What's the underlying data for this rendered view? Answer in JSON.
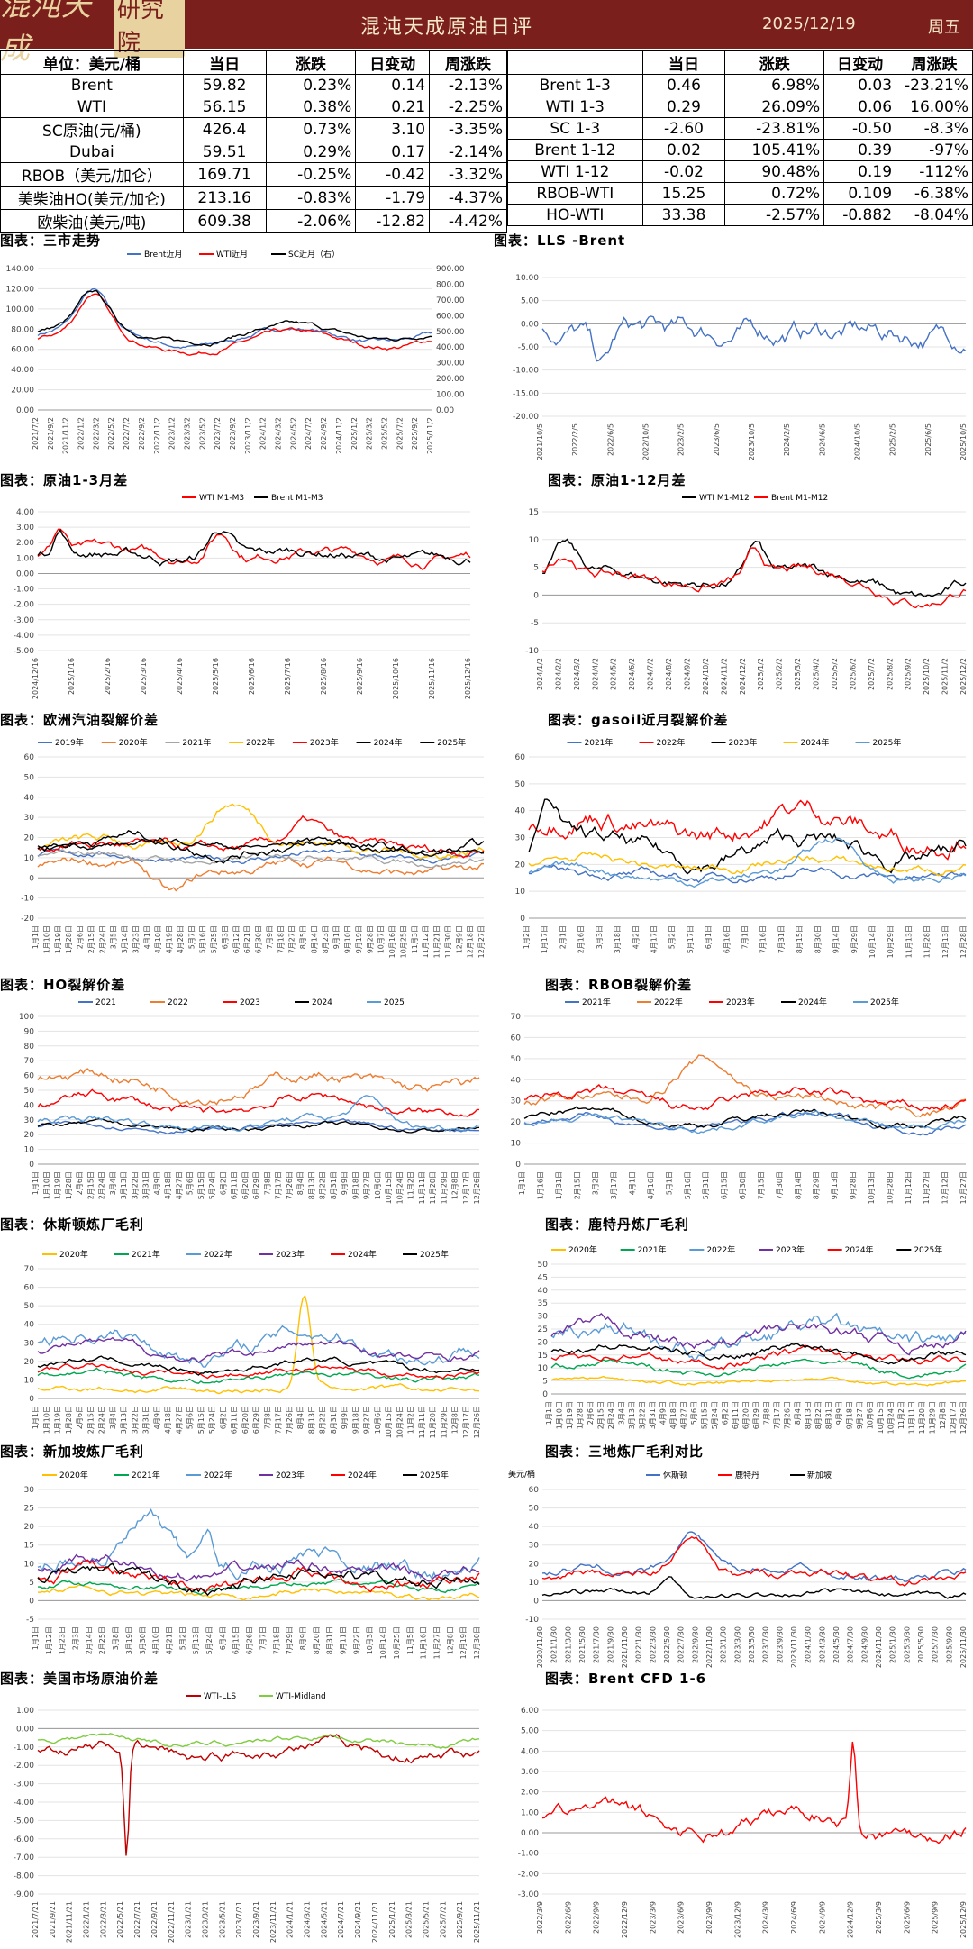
{
  "header": {
    "logo_text": "混沌天成",
    "logo_seal": "研究院",
    "title": "混沌天成原油日评",
    "date": "2025/12/19",
    "weekday": "周五"
  },
  "left_table": {
    "headers": [
      "单位：美元/桶",
      "当日",
      "涨跌",
      "日变动",
      "周涨跌"
    ],
    "rows": [
      [
        "Brent",
        "59.82",
        "0.23%",
        "0.14",
        "-2.13%"
      ],
      [
        "WTI",
        "56.15",
        "0.38%",
        "0.21",
        "-2.25%"
      ],
      [
        "SC原油(元/桶)",
        "426.4",
        "0.73%",
        "3.10",
        "-3.35%"
      ],
      [
        "Dubai",
        "59.51",
        "0.29%",
        "0.17",
        "-2.14%"
      ],
      [
        "RBOB（美元/加仑）",
        "169.71",
        "-0.25%",
        "-0.42",
        "-3.32%"
      ],
      [
        "美柴油HO(美元/加仑)",
        "213.16",
        "-0.83%",
        "-1.79",
        "-4.37%"
      ],
      [
        "欧柴油(美元/吨)",
        "609.38",
        "-2.06%",
        "-12.82",
        "-4.42%"
      ]
    ]
  },
  "right_table": {
    "headers": [
      "",
      "当日",
      "涨跌",
      "日变动",
      "周涨跌"
    ],
    "rows": [
      [
        "Brent 1-3",
        "0.46",
        "6.98%",
        "0.03",
        "-23.21%"
      ],
      [
        "WTI 1-3",
        "0.29",
        "26.09%",
        "0.06",
        "16.00%"
      ],
      [
        "SC 1-3",
        "-2.60",
        "-23.81%",
        "-0.50",
        "-8.3%"
      ],
      [
        "Brent 1-12",
        "0.02",
        "105.41%",
        "0.39",
        "-97%"
      ],
      [
        "WTI 1-12",
        "-0.02",
        "90.48%",
        "0.19",
        "-112%"
      ],
      [
        "RBOB-WTI",
        "15.25",
        "0.72%",
        "0.109",
        "-6.38%"
      ],
      [
        "HO-WTI",
        "33.38",
        "-2.57%",
        "-0.882",
        "-8.04%"
      ]
    ]
  },
  "colors": {
    "header_bg": "#7b1f1d",
    "y2019": "#4472c4",
    "y2020": "#ed7d31",
    "y2021": "#a5a5a5",
    "y2022": "#ffc000",
    "y2023": "#ff0000",
    "y2024": "#000000",
    "y2025": "#5b9bd5"
  },
  "chart_data": [
    {
      "id": "three-markets",
      "type": "line",
      "title": "图表：三市走势",
      "series": [
        {
          "name": "Brent近月"
        },
        {
          "name": "WTI近月"
        },
        {
          "name": "SC近月（右）"
        }
      ],
      "ylim": [
        0,
        140
      ],
      "y2lim": [
        0,
        900
      ],
      "yticks": [
        "0.00",
        "20.00",
        "40.00",
        "60.00",
        "80.00",
        "100.00",
        "120.00",
        "140.00"
      ],
      "y2ticks": [
        "0.00",
        "100.00",
        "200.00",
        "300.00",
        "400.00",
        "500.00",
        "600.00",
        "700.00",
        "800.00",
        "900.00"
      ],
      "xticks": [
        "2021/7/2",
        "2021/9/2",
        "2021/11/2",
        "2022/1/2",
        "2022/3/2",
        "2022/5/2",
        "2022/7/2",
        "2022/9/2",
        "2022/11/2",
        "2023/1/2",
        "2023/3/2",
        "2023/5/2",
        "2023/7/2",
        "2023/9/2",
        "2023/11/2",
        "2024/1/2",
        "2024/3/2",
        "2024/5/2",
        "2024/7/2",
        "2024/9/2",
        "2024/11/2",
        "2025/1/2",
        "2025/3/2",
        "2025/5/2",
        "2025/7/2",
        "2025/9/2",
        "2025/11/2"
      ]
    },
    {
      "id": "lls-brent",
      "type": "line",
      "title": "图表：LLS -Brent",
      "ylim": [
        -20,
        10
      ],
      "yticks": [
        "-20.00",
        "-15.00",
        "-10.00",
        "-5.00",
        "0.00",
        "5.00",
        "10.00"
      ],
      "xticks": [
        "2021/10/5",
        "2022/2/5",
        "2022/6/5",
        "2022/10/5",
        "2023/2/5",
        "2023/6/5",
        "2023/10/5",
        "2024/2/5",
        "2024/6/5",
        "2024/10/5",
        "2025/2/5",
        "2025/6/5",
        "2025/10/5"
      ]
    },
    {
      "id": "crude-1-3",
      "type": "line",
      "title": "图表：原油1-3月差",
      "series": [
        {
          "name": "WTI M1-M3"
        },
        {
          "name": "Brent M1-M3"
        }
      ],
      "ylim": [
        -5,
        4
      ],
      "yticks": [
        "-5.00",
        "-4.00",
        "-3.00",
        "-2.00",
        "-1.00",
        "0.00",
        "1.00",
        "2.00",
        "3.00",
        "4.00"
      ],
      "xticks": [
        "2024/12/16",
        "2025/1/16",
        "2025/2/16",
        "2025/3/16",
        "2025/4/16",
        "2025/5/16",
        "2025/6/16",
        "2025/7/16",
        "2025/8/16",
        "2025/9/16",
        "2025/10/16",
        "2025/11/16",
        "2025/12/16"
      ]
    },
    {
      "id": "crude-1-12",
      "type": "line",
      "title": "图表：原油1-12月差",
      "series": [
        {
          "name": "WTI M1-M12"
        },
        {
          "name": "Brent M1-M12"
        }
      ],
      "ylim": [
        -10,
        15
      ],
      "yticks": [
        "-10",
        "-5",
        "0",
        "5",
        "10",
        "15"
      ],
      "xticks": [
        "2024/1/2",
        "2024/2/2",
        "2024/3/2",
        "2024/4/2",
        "2024/5/2",
        "2024/6/2",
        "2024/7/2",
        "2024/8/2",
        "2024/9/2",
        "2024/10/2",
        "2024/11/2",
        "2024/12/2",
        "2025/1/2",
        "2025/2/2",
        "2025/3/2",
        "2025/4/2",
        "2025/5/2",
        "2025/6/2",
        "2025/7/2",
        "2025/8/2",
        "2025/9/2",
        "2025/10/2",
        "2025/11/2",
        "2025/12/2"
      ]
    },
    {
      "id": "eu-gasoline",
      "type": "line",
      "title": "图表：欧洲汽油裂解价差",
      "series": [
        {
          "name": "2019年"
        },
        {
          "name": "2020年"
        },
        {
          "name": "2021年"
        },
        {
          "name": "2022年"
        },
        {
          "name": "2023年"
        },
        {
          "name": "2024年"
        },
        {
          "name": "2025年"
        }
      ],
      "ylim": [
        -20,
        60
      ],
      "yticks": [
        "-20",
        "-10",
        "0",
        "10",
        "20",
        "30",
        "40",
        "50",
        "60"
      ],
      "xticks": [
        "1月1日",
        "1月10日",
        "1月19日",
        "1月28日",
        "2月6日",
        "2月15日",
        "2月24日",
        "3月5日",
        "3月14日",
        "3月23日",
        "4月1日",
        "4月10日",
        "4月19日",
        "4月28日",
        "5月7日",
        "5月16日",
        "5月25日",
        "6月3日",
        "6月12日",
        "6月21日",
        "6月30日",
        "7月9日",
        "7月18日",
        "7月27日",
        "8月5日",
        "8月14日",
        "8月23日",
        "9月1日",
        "9月10日",
        "9月19日",
        "9月28日",
        "10月7日",
        "10月16日",
        "10月25日",
        "11月3日",
        "11月12日",
        "11月21日",
        "11月30日",
        "12月9日",
        "12月18日",
        "12月27日"
      ]
    },
    {
      "id": "gasoil",
      "type": "line",
      "title": "图表：gasoil近月裂解价差",
      "series": [
        {
          "name": "2021年"
        },
        {
          "name": "2022年"
        },
        {
          "name": "2023年"
        },
        {
          "name": "2024年"
        },
        {
          "name": "2025年"
        }
      ],
      "ylim": [
        0,
        60
      ],
      "yticks": [
        "0",
        "10",
        "20",
        "30",
        "40",
        "50",
        "60"
      ],
      "xticks": [
        "1月2日",
        "1月17日",
        "2月1日",
        "2月16日",
        "3月3日",
        "3月18日",
        "4月2日",
        "4月17日",
        "5月2日",
        "5月17日",
        "6月1日",
        "6月16日",
        "7月1日",
        "7月16日",
        "7月31日",
        "8月15日",
        "8月30日",
        "9月14日",
        "9月29日",
        "10月14日",
        "10月29日",
        "11月13日",
        "11月28日",
        "12月13日",
        "12月28日"
      ]
    },
    {
      "id": "ho-crack",
      "type": "line",
      "title": "图表：HO裂解价差",
      "series": [
        {
          "name": "2021"
        },
        {
          "name": "2022"
        },
        {
          "name": "2023"
        },
        {
          "name": "2024"
        },
        {
          "name": "2025"
        }
      ],
      "ylim": [
        0,
        100
      ],
      "yticks": [
        "0",
        "10",
        "20",
        "30",
        "40",
        "50",
        "60",
        "70",
        "80",
        "90",
        "100"
      ],
      "xticks": [
        "1月1日",
        "1月10日",
        "1月19日",
        "1月28日",
        "2月6日",
        "2月15日",
        "2月24日",
        "3月4日",
        "3月13日",
        "3月22日",
        "3月31日",
        "4月9日",
        "4月18日",
        "4月27日",
        "5月6日",
        "5月15日",
        "5月24日",
        "6月2日",
        "6月11日",
        "6月20日",
        "6月29日",
        "7月8日",
        "7月17日",
        "7月26日",
        "8月4日",
        "8月13日",
        "8月22日",
        "8月31日",
        "9月9日",
        "9月18日",
        "9月27日",
        "10月6日",
        "10月15日",
        "10月24日",
        "11月2日",
        "11月11日",
        "11月20日",
        "11月29日",
        "12月8日",
        "12月17日",
        "12月26日"
      ]
    },
    {
      "id": "rbob-crack",
      "type": "line",
      "title": "图表：RBOB裂解价差",
      "series": [
        {
          "name": "2021年"
        },
        {
          "name": "2022年"
        },
        {
          "name": "2023年"
        },
        {
          "name": "2024年"
        },
        {
          "name": "2025年"
        }
      ],
      "ylim": [
        0,
        70
      ],
      "yticks": [
        "0",
        "10",
        "20",
        "30",
        "40",
        "50",
        "60",
        "70"
      ],
      "xticks": [
        "1月1日",
        "1月16日",
        "1月31日",
        "2月15日",
        "3月2日",
        "3月17日",
        "4月1日",
        "4月16日",
        "5月1日",
        "5月16日",
        "5月31日",
        "6月15日",
        "6月30日",
        "7月15日",
        "7月30日",
        "8月14日",
        "8月29日",
        "9月13日",
        "9月28日",
        "10月13日",
        "10月28日",
        "11月12日",
        "11月27日",
        "12月12日",
        "12月27日"
      ]
    },
    {
      "id": "houston-margin",
      "type": "line",
      "title": "图表：休斯顿炼厂毛利",
      "series": [
        {
          "name": "2020年"
        },
        {
          "name": "2021年"
        },
        {
          "name": "2022年"
        },
        {
          "name": "2023年"
        },
        {
          "name": "2024年"
        },
        {
          "name": "2025年"
        }
      ],
      "ylim": [
        0,
        70
      ],
      "yticks": [
        "0",
        "10",
        "20",
        "30",
        "40",
        "50",
        "60",
        "70"
      ],
      "xticks": [
        "1月1日",
        "1月10日",
        "1月19日",
        "1月28日",
        "2月6日",
        "2月15日",
        "2月24日",
        "3月4日",
        "3月13日",
        "3月22日",
        "3月31日",
        "4月9日",
        "4月18日",
        "4月27日",
        "5月6日",
        "5月15日",
        "5月24日",
        "6月2日",
        "6月11日",
        "6月20日",
        "6月29日",
        "7月8日",
        "7月17日",
        "7月26日",
        "8月4日",
        "8月13日",
        "8月22日",
        "8月31日",
        "9月9日",
        "9月18日",
        "9月27日",
        "10月6日",
        "10月15日",
        "10月24日",
        "11月2日",
        "11月11日",
        "11月20日",
        "11月29日",
        "12月8日",
        "12月17日",
        "12月26日"
      ]
    },
    {
      "id": "rotterdam-margin",
      "type": "line",
      "title": "图表：鹿特丹炼厂毛利",
      "series": [
        {
          "name": "2020年"
        },
        {
          "name": "2021年"
        },
        {
          "name": "2022年"
        },
        {
          "name": "2023年"
        },
        {
          "name": "2024年"
        },
        {
          "name": "2025年"
        }
      ],
      "ylim": [
        0,
        50
      ],
      "yticks": [
        "0",
        "5",
        "10",
        "15",
        "20",
        "25",
        "30",
        "35",
        "40",
        "45",
        "50"
      ],
      "xticks": [
        "1月1日",
        "1月10日",
        "1月19日",
        "1月28日",
        "2月6日",
        "2月15日",
        "2月24日",
        "3月4日",
        "3月13日",
        "3月22日",
        "3月31日",
        "4月9日",
        "4月18日",
        "4月27日",
        "5月6日",
        "5月15日",
        "5月24日",
        "6月2日",
        "6月11日",
        "6月20日",
        "6月29日",
        "7月8日",
        "7月17日",
        "7月26日",
        "8月4日",
        "8月13日",
        "8月22日",
        "8月31日",
        "9月9日",
        "9月18日",
        "9月27日",
        "10月6日",
        "10月15日",
        "10月24日",
        "11月2日",
        "11月11日",
        "11月20日",
        "11月29日",
        "12月8日",
        "12月17日",
        "12月26日"
      ]
    },
    {
      "id": "singapore-margin",
      "type": "line",
      "title": "图表：新加坡炼厂毛利",
      "series": [
        {
          "name": "2020年"
        },
        {
          "name": "2021年"
        },
        {
          "name": "2022年"
        },
        {
          "name": "2023年"
        },
        {
          "name": "2024年"
        },
        {
          "name": "2025年"
        }
      ],
      "ylim": [
        -5,
        30
      ],
      "yticks": [
        "-5",
        "0",
        "5",
        "10",
        "15",
        "20",
        "25",
        "30"
      ],
      "xticks": [
        "1月1日",
        "1月12日",
        "1月23日",
        "2月3日",
        "2月14日",
        "2月25日",
        "3月8日",
        "3月19日",
        "3月30日",
        "4月10日",
        "4月21日",
        "5月2日",
        "5月13日",
        "5月24日",
        "6月4日",
        "6月15日",
        "6月26日",
        "7月7日",
        "7月18日",
        "7月29日",
        "8月9日",
        "8月20日",
        "8月31日",
        "9月11日",
        "9月22日",
        "10月3日",
        "10月14日",
        "10月25日",
        "11月5日",
        "11月16日",
        "11月27日",
        "12月8日",
        "12月19日",
        "12月30日"
      ]
    },
    {
      "id": "three-refinery",
      "type": "line",
      "title": "图表：三地炼厂毛利对比",
      "unit": "美元/桶",
      "series": [
        {
          "name": "休斯顿"
        },
        {
          "name": "鹿特丹"
        },
        {
          "name": "新加坡"
        }
      ],
      "ylim": [
        -10,
        60
      ],
      "yticks": [
        "-10",
        "0",
        "10",
        "20",
        "30",
        "40",
        "50",
        "60"
      ],
      "xticks": [
        "2020/11/30",
        "2021/1/30",
        "2021/3/30",
        "2021/5/30",
        "2021/7/30",
        "2021/9/30",
        "2021/11/30",
        "2022/1/30",
        "2022/3/30",
        "2022/5/30",
        "2022/7/30",
        "2022/9/30",
        "2022/11/30",
        "2023/1/30",
        "2023/3/30",
        "2023/5/30",
        "2023/7/30",
        "2023/9/30",
        "2023/11/30",
        "2024/1/30",
        "2024/3/30",
        "2024/5/30",
        "2024/7/30",
        "2024/9/30",
        "2024/11/30",
        "2025/1/30",
        "2025/3/30",
        "2025/5/30",
        "2025/7/30",
        "2025/9/30",
        "2025/11/30"
      ]
    },
    {
      "id": "us-crude-spread",
      "type": "line",
      "title": "图表：美国市场原油价差",
      "series": [
        {
          "name": "WTI-LLS"
        },
        {
          "name": "WTI-Midland"
        }
      ],
      "ylim": [
        -9,
        1
      ],
      "yticks": [
        "-9.00",
        "-8.00",
        "-7.00",
        "-6.00",
        "-5.00",
        "-4.00",
        "-3.00",
        "-2.00",
        "-1.00",
        "0.00",
        "1.00"
      ],
      "xticks": [
        "2021/7/21",
        "2021/9/21",
        "2021/11/21",
        "2022/1/21",
        "2022/3/21",
        "2022/5/21",
        "2022/7/21",
        "2022/9/21",
        "2022/11/21",
        "2023/1/21",
        "2023/3/21",
        "2023/5/21",
        "2023/7/21",
        "2023/9/21",
        "2023/11/21",
        "2024/1/21",
        "2024/3/21",
        "2024/5/21",
        "2024/7/21",
        "2024/9/21",
        "2024/11/21",
        "2025/1/21",
        "2025/3/21",
        "2025/5/21",
        "2025/7/21",
        "2025/9/21",
        "2025/11/21"
      ]
    },
    {
      "id": "brent-cfd",
      "type": "line",
      "title": "图表：Brent CFD 1-6",
      "ylim": [
        -3,
        6
      ],
      "yticks": [
        "-3.00",
        "-2.00",
        "-1.00",
        "0.00",
        "1.00",
        "2.00",
        "3.00",
        "4.00",
        "5.00",
        "6.00"
      ],
      "xticks": [
        "2022/3/9",
        "2022/6/9",
        "2022/9/9",
        "2022/12/9",
        "2023/3/9",
        "2023/6/9",
        "2023/9/9",
        "2023/12/9",
        "2024/3/9",
        "2024/6/9",
        "2024/9/9",
        "2024/12/9",
        "2025/3/9",
        "2025/6/9",
        "2025/9/9",
        "2025/12/9"
      ]
    }
  ]
}
